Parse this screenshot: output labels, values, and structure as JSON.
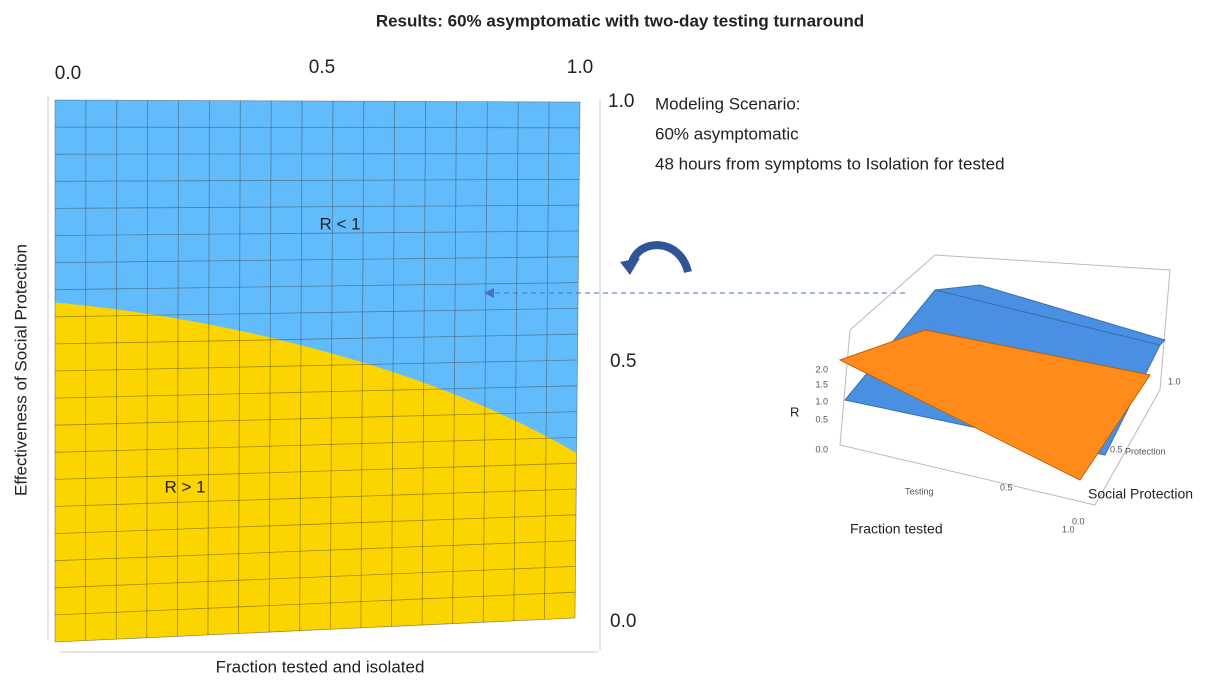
{
  "header": {
    "title": "Results: 60% asymptomatic with two-day testing turnaround"
  },
  "main_plot": {
    "top_ticks": [
      "0.0",
      "0.5",
      "1.0"
    ],
    "right_ticks": [
      "1.0",
      "0.5",
      "0.0"
    ],
    "y_label": "Effectiveness of Social Protection",
    "x_label": "Fraction tested and isolated",
    "region_above": "R < 1",
    "region_below": "R > 1"
  },
  "scenario": {
    "heading": "Modeling Scenario:",
    "lines": [
      "60% asymptomatic",
      "48 hours from symptoms to Isolation for tested"
    ]
  },
  "inset": {
    "z_label": "R",
    "z_ticks": [
      "2.0",
      "1.5",
      "1.0",
      "0.5",
      "0.0"
    ],
    "testing_label": "Testing",
    "protection_label": "Protection",
    "x_label": "Fraction tested",
    "y_label": "Social Protection",
    "x_ticks": [
      "0.5",
      "1.0"
    ],
    "y_ticks": [
      "1.0",
      "0.5",
      "0.0"
    ]
  }
}
